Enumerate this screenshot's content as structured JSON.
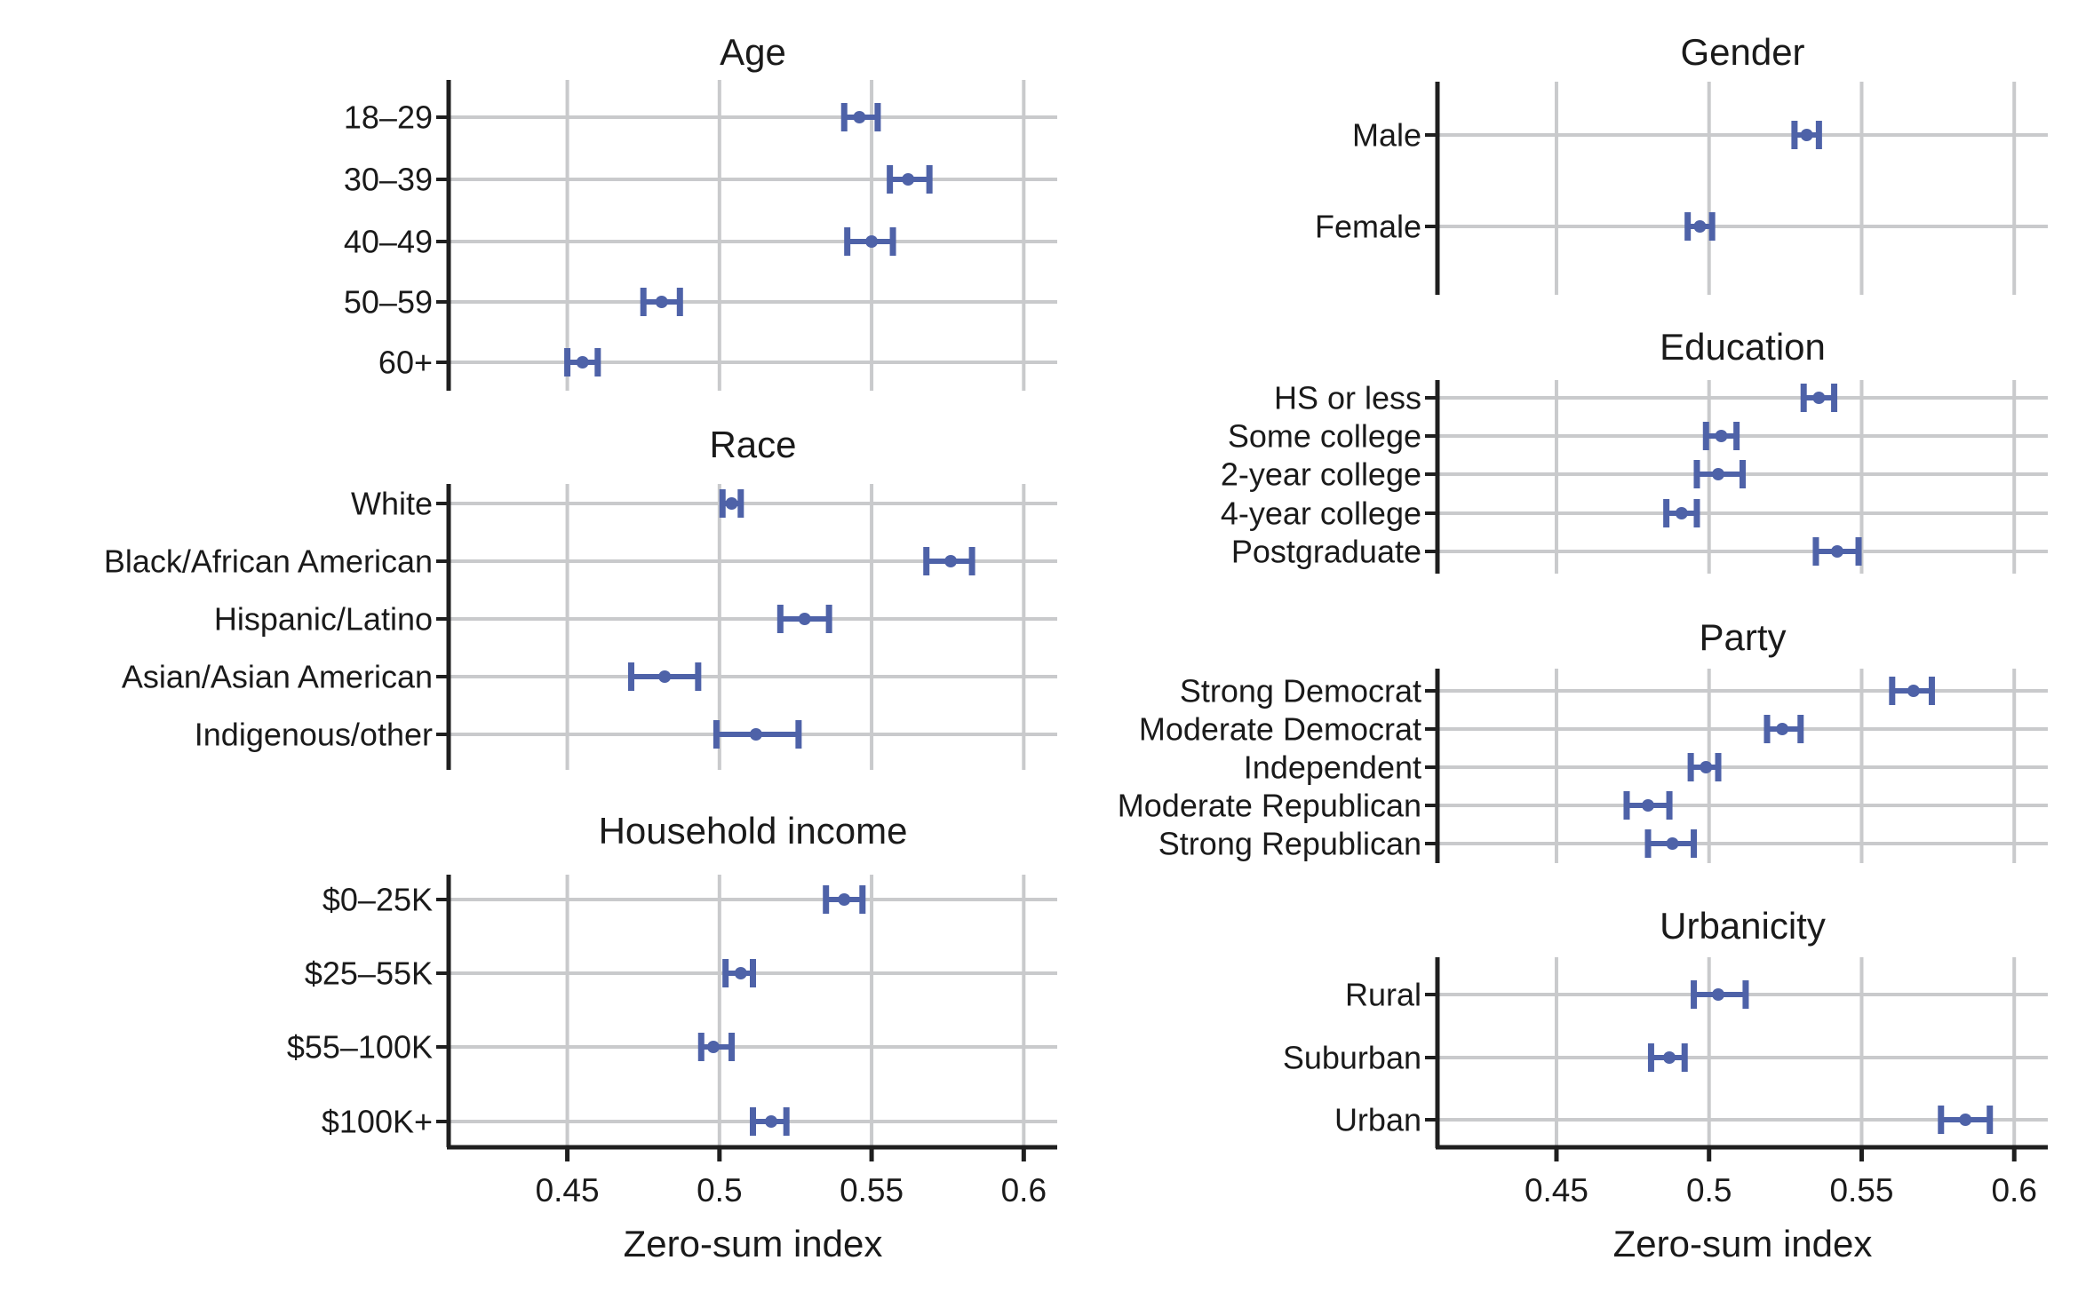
{
  "figure": {
    "xlabel": "Zero-sum index",
    "x_ticks": [
      {
        "label": "0.45",
        "value": 0.45
      },
      {
        "label": "0.5",
        "value": 0.5
      },
      {
        "label": "0.55",
        "value": 0.55
      },
      {
        "label": "0.6",
        "value": 0.6
      }
    ],
    "xlim": [
      0.411,
      0.611
    ],
    "grid": true,
    "legend": "none",
    "error_bar_style": "mean point with horizontal 95% CI whiskers",
    "colors": {
      "point": "#4e62a8",
      "grid": "#c9cacc",
      "axis": "#1f1f1f",
      "text": "#1a1a1a"
    }
  },
  "chart_data": [
    {
      "id": "age",
      "column": "left",
      "type": "scatter",
      "title": "Age",
      "categories": [
        "18–29",
        "30–39",
        "40–49",
        "50–59",
        "60+"
      ],
      "estimates": [
        0.546,
        0.562,
        0.55,
        0.481,
        0.455
      ],
      "ci_low": [
        0.541,
        0.556,
        0.542,
        0.475,
        0.45
      ],
      "ci_high": [
        0.552,
        0.569,
        0.557,
        0.487,
        0.46
      ]
    },
    {
      "id": "race",
      "column": "left",
      "type": "scatter",
      "title": "Race",
      "categories": [
        "White",
        "Black/African American",
        "Hispanic/Latino",
        "Asian/Asian American",
        "Indigenous/other"
      ],
      "estimates": [
        0.504,
        0.576,
        0.528,
        0.482,
        0.512
      ],
      "ci_low": [
        0.501,
        0.568,
        0.52,
        0.471,
        0.499
      ],
      "ci_high": [
        0.507,
        0.583,
        0.536,
        0.493,
        0.526
      ]
    },
    {
      "id": "income",
      "column": "left",
      "type": "scatter",
      "title": "Household income",
      "categories": [
        "$0–25K",
        "$25–55K",
        "$55–100K",
        "$100K+"
      ],
      "estimates": [
        0.541,
        0.507,
        0.498,
        0.517
      ],
      "ci_low": [
        0.535,
        0.502,
        0.494,
        0.511
      ],
      "ci_high": [
        0.547,
        0.511,
        0.504,
        0.522
      ]
    },
    {
      "id": "gender",
      "column": "right",
      "type": "scatter",
      "title": "Gender",
      "categories": [
        "Male",
        "Female"
      ],
      "estimates": [
        0.532,
        0.497
      ],
      "ci_low": [
        0.528,
        0.493
      ],
      "ci_high": [
        0.536,
        0.501
      ]
    },
    {
      "id": "education",
      "column": "right",
      "type": "scatter",
      "title": "Education",
      "categories": [
        "HS or less",
        "Some college",
        "2-year college",
        "4-year college",
        "Postgraduate"
      ],
      "estimates": [
        0.536,
        0.504,
        0.503,
        0.491,
        0.542
      ],
      "ci_low": [
        0.531,
        0.499,
        0.496,
        0.486,
        0.535
      ],
      "ci_high": [
        0.541,
        0.509,
        0.511,
        0.496,
        0.549
      ]
    },
    {
      "id": "party",
      "column": "right",
      "type": "scatter",
      "title": "Party",
      "categories": [
        "Strong Democrat",
        "Moderate Democrat",
        "Independent",
        "Moderate Republican",
        "Strong Republican"
      ],
      "estimates": [
        0.567,
        0.524,
        0.499,
        0.48,
        0.488
      ],
      "ci_low": [
        0.56,
        0.519,
        0.494,
        0.473,
        0.48
      ],
      "ci_high": [
        0.573,
        0.53,
        0.503,
        0.487,
        0.495
      ]
    },
    {
      "id": "urbanicity",
      "column": "right",
      "type": "scatter",
      "title": "Urbanicity",
      "categories": [
        "Rural",
        "Suburban",
        "Urban"
      ],
      "estimates": [
        0.503,
        0.487,
        0.584
      ],
      "ci_low": [
        0.495,
        0.481,
        0.576
      ],
      "ci_high": [
        0.512,
        0.492,
        0.592
      ]
    }
  ]
}
